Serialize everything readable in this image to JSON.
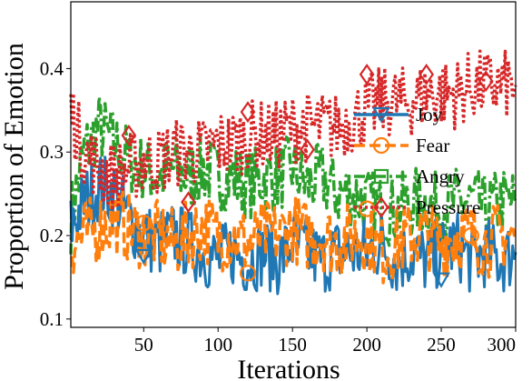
{
  "chart_data": {
    "type": "line",
    "xlabel": "Iterations",
    "ylabel": "Proportion of Emotion",
    "xlim": [
      1,
      300
    ],
    "ylim": [
      0.09,
      0.48
    ],
    "xticks": [
      50,
      100,
      150,
      200,
      250,
      300
    ],
    "yticks": [
      0.1,
      0.2,
      0.3,
      0.4
    ],
    "xtick_labels": [
      "50",
      "100",
      "150",
      "200",
      "250",
      "300"
    ],
    "ytick_labels": [
      "0.1",
      "0.2",
      "0.3",
      "0.4"
    ],
    "grid": false,
    "legend_position": "right",
    "x": [
      1,
      10,
      20,
      30,
      40,
      50,
      60,
      70,
      80,
      90,
      100,
      110,
      120,
      130,
      140,
      150,
      160,
      170,
      180,
      190,
      200,
      210,
      220,
      230,
      240,
      250,
      260,
      270,
      280,
      290,
      300
    ],
    "series": [
      {
        "name": "Joy",
        "color": "#1f77b4",
        "line_style": "solid",
        "marker": "triangle-down",
        "values": [
          0.21,
          0.24,
          0.26,
          0.25,
          0.22,
          0.2,
          0.19,
          0.2,
          0.19,
          0.18,
          0.17,
          0.18,
          0.17,
          0.18,
          0.17,
          0.19,
          0.18,
          0.17,
          0.18,
          0.18,
          0.18,
          0.19,
          0.17,
          0.18,
          0.17,
          0.18,
          0.19,
          0.17,
          0.18,
          0.17,
          0.18
        ],
        "marker_indices": [
          5,
          25
        ],
        "marker_values": [
          0.175,
          0.147
        ]
      },
      {
        "name": "Fear",
        "color": "#ff7f0e",
        "line_style": "dashed",
        "marker": "circle",
        "values": [
          0.19,
          0.2,
          0.21,
          0.22,
          0.21,
          0.2,
          0.2,
          0.19,
          0.2,
          0.21,
          0.2,
          0.2,
          0.19,
          0.2,
          0.2,
          0.21,
          0.2,
          0.2,
          0.19,
          0.2,
          0.2,
          0.18,
          0.19,
          0.2,
          0.2,
          0.19,
          0.2,
          0.2,
          0.19,
          0.2,
          0.2
        ],
        "marker_indices": [
          5,
          12,
          20,
          27
        ],
        "marker_values": [
          0.215,
          0.155,
          0.232,
          0.2
        ]
      },
      {
        "name": "Angry",
        "color": "#2ca02c",
        "line_style": "dashdot",
        "marker": "square",
        "values": [
          0.22,
          0.3,
          0.33,
          0.31,
          0.29,
          0.28,
          0.27,
          0.28,
          0.27,
          0.28,
          0.27,
          0.27,
          0.26,
          0.27,
          0.27,
          0.28,
          0.26,
          0.27,
          0.25,
          0.25,
          0.24,
          0.23,
          0.23,
          0.24,
          0.24,
          0.23,
          0.24,
          0.24,
          0.23,
          0.24,
          0.24
        ],
        "marker_indices": [],
        "marker_values": []
      },
      {
        "name": "Pressure",
        "color": "#d62728",
        "line_style": "dotted",
        "marker": "diamond",
        "values": [
          0.35,
          0.3,
          0.28,
          0.27,
          0.28,
          0.29,
          0.29,
          0.3,
          0.3,
          0.3,
          0.31,
          0.31,
          0.32,
          0.32,
          0.32,
          0.33,
          0.33,
          0.33,
          0.33,
          0.34,
          0.35,
          0.36,
          0.36,
          0.36,
          0.37,
          0.37,
          0.37,
          0.38,
          0.38,
          0.38,
          0.38
        ],
        "marker_indices": [
          4,
          8,
          12,
          16,
          20,
          24,
          28
        ],
        "marker_values": [
          0.32,
          0.24,
          0.348,
          0.303,
          0.393,
          0.393,
          0.385
        ]
      }
    ]
  }
}
